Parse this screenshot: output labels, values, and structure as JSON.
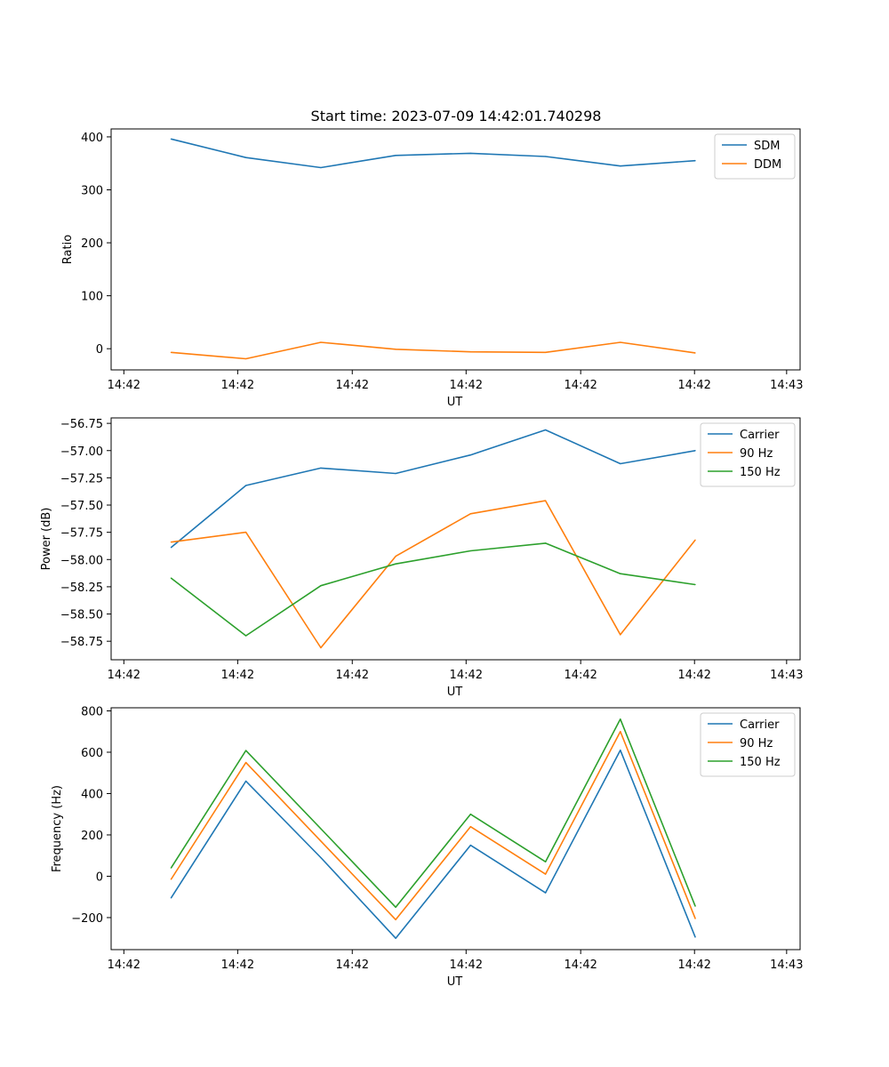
{
  "figure": {
    "title": "Start time: 2023-07-09 14:42:01.740298"
  },
  "chart_data": [
    {
      "type": "line",
      "xlabel": "UT",
      "ylabel": "Ratio",
      "x_tick_labels": [
        "14:42",
        "14:42",
        "14:42",
        "14:42",
        "14:42",
        "14:42",
        "14:43"
      ],
      "y_ticks": [
        0,
        100,
        200,
        300,
        400
      ],
      "y_tick_labels": [
        "0",
        "100",
        "200",
        "300",
        "400"
      ],
      "ylim": [
        -40,
        415
      ],
      "x_points": [
        1,
        2,
        3,
        4,
        5,
        6,
        7,
        8
      ],
      "xlim": [
        0.2,
        9.4
      ],
      "x_ticks": [
        0.37,
        1.89,
        3.42,
        4.94,
        6.47,
        7.99,
        9.22
      ],
      "legend": "upper right",
      "series": [
        {
          "name": "SDM",
          "color": "#1f77b4",
          "values": [
            396,
            361,
            342,
            365,
            369,
            363,
            345,
            355
          ]
        },
        {
          "name": "DDM",
          "color": "#ff7f0e",
          "values": [
            -7,
            -19,
            12,
            -1,
            -6,
            -7,
            12,
            -8
          ]
        }
      ]
    },
    {
      "type": "line",
      "xlabel": "UT",
      "ylabel": "Power (dB)",
      "x_tick_labels": [
        "14:42",
        "14:42",
        "14:42",
        "14:42",
        "14:42",
        "14:42",
        "14:43"
      ],
      "y_ticks": [
        -58.75,
        -58.5,
        -58.25,
        -58.0,
        -57.75,
        -57.5,
        -57.25,
        -57.0,
        -56.75
      ],
      "y_tick_labels": [
        "−58.75",
        "−58.50",
        "−58.25",
        "−58.00",
        "−57.75",
        "−57.50",
        "−57.25",
        "−57.00",
        "−56.75"
      ],
      "ylim": [
        -58.92,
        -56.7
      ],
      "x_points": [
        1,
        2,
        3,
        4,
        5,
        6,
        7,
        8
      ],
      "xlim": [
        0.2,
        9.4
      ],
      "x_ticks": [
        0.37,
        1.89,
        3.42,
        4.94,
        6.47,
        7.99,
        9.22
      ],
      "legend": "upper right",
      "series": [
        {
          "name": "Carrier",
          "color": "#1f77b4",
          "values": [
            -57.89,
            -57.32,
            -57.16,
            -57.21,
            -57.04,
            -56.81,
            -57.12,
            -57.0
          ]
        },
        {
          "name": "90 Hz",
          "color": "#ff7f0e",
          "values": [
            -57.84,
            -57.75,
            -58.81,
            -57.97,
            -57.58,
            -57.46,
            -58.69,
            -57.82
          ]
        },
        {
          "name": "150 Hz",
          "color": "#2ca02c",
          "values": [
            -58.17,
            -58.7,
            -58.24,
            -58.04,
            -57.92,
            -57.85,
            -58.13,
            -58.23
          ]
        }
      ]
    },
    {
      "type": "line",
      "xlabel": "UT",
      "ylabel": "Frequency (Hz)",
      "x_tick_labels": [
        "14:42",
        "14:42",
        "14:42",
        "14:42",
        "14:42",
        "14:42",
        "14:43"
      ],
      "y_ticks": [
        -200,
        0,
        200,
        400,
        600,
        800
      ],
      "y_tick_labels": [
        "−200",
        "0",
        "200",
        "400",
        "600",
        "800"
      ],
      "ylim": [
        -355,
        815
      ],
      "x_points": [
        1,
        2,
        3,
        4,
        5,
        6,
        7,
        8
      ],
      "xlim": [
        0.2,
        9.4
      ],
      "x_ticks": [
        0.37,
        1.89,
        3.42,
        4.94,
        6.47,
        7.99,
        9.22
      ],
      "legend": "upper right",
      "series": [
        {
          "name": "Carrier",
          "color": "#1f77b4",
          "values": [
            -105,
            460,
            90,
            -300,
            150,
            -80,
            610,
            -295
          ]
        },
        {
          "name": "90 Hz",
          "color": "#ff7f0e",
          "values": [
            -15,
            550,
            170,
            -210,
            240,
            10,
            700,
            -205
          ]
        },
        {
          "name": "150 Hz",
          "color": "#2ca02c",
          "values": [
            40,
            608,
            230,
            -150,
            300,
            70,
            760,
            -145
          ]
        }
      ]
    }
  ]
}
